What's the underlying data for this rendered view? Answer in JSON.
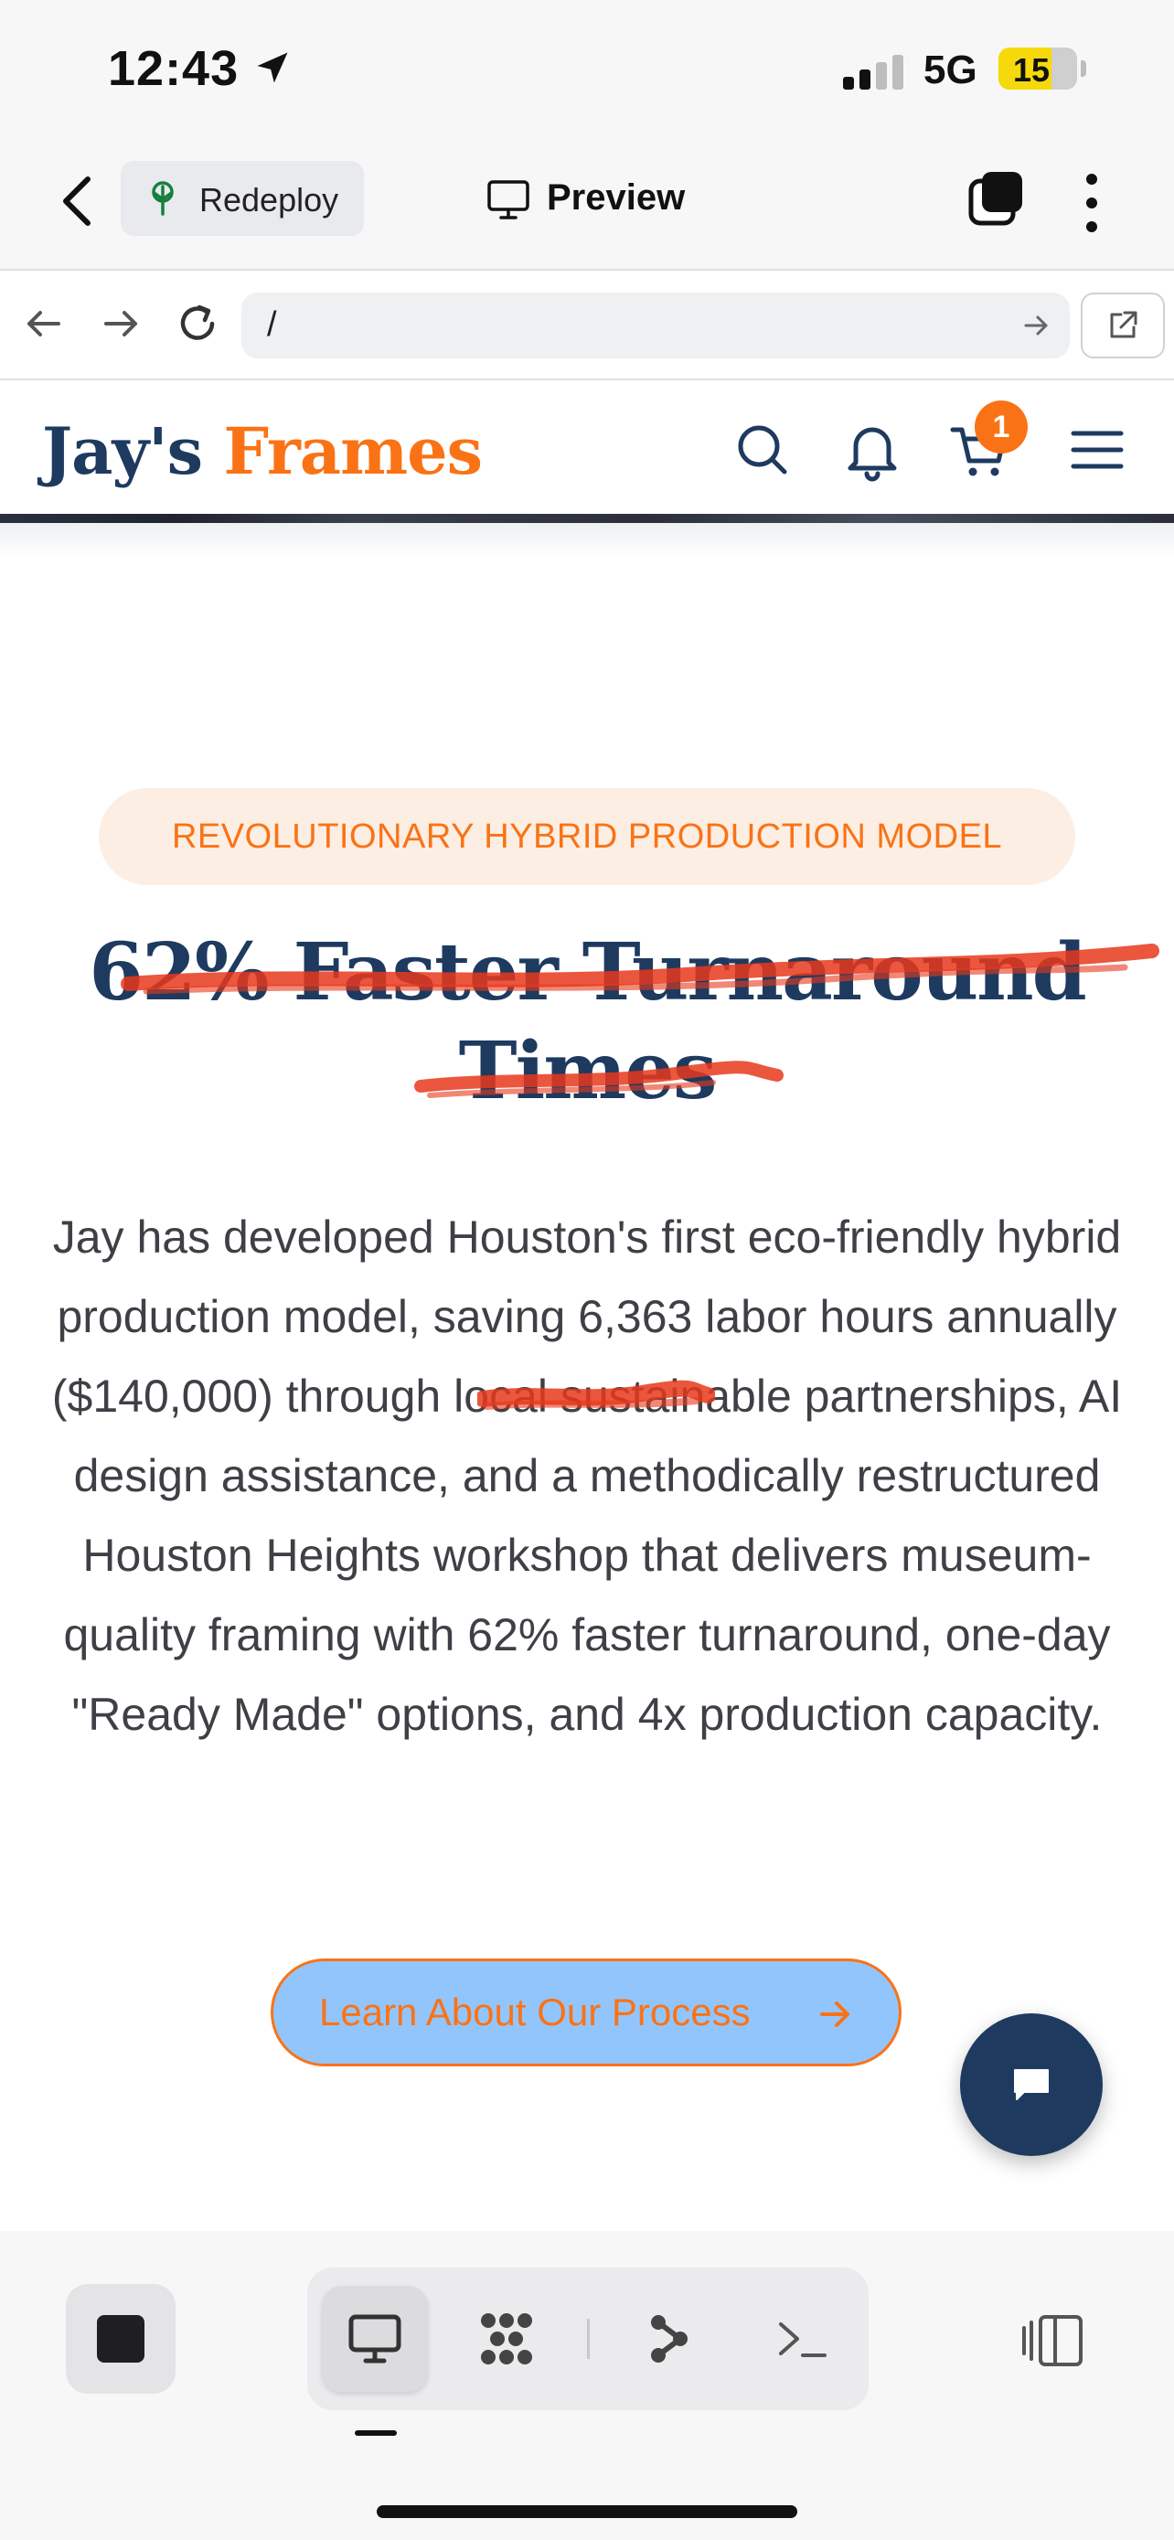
{
  "status_bar": {
    "time": "12:43",
    "network": "5G",
    "battery": "15",
    "location_icon": "location-arrow-icon",
    "signal_icon": "signal-icon"
  },
  "app_header": {
    "back_icon": "chevron-left-icon",
    "redeploy_label": "Redeploy",
    "redeploy_icon": "deploy-tree-icon",
    "preview_label": "Preview",
    "preview_icon": "monitor-icon",
    "tabs_icon": "tabs-icon",
    "more_icon": "more-vertical-icon"
  },
  "url_bar": {
    "url": "/",
    "back_icon": "arrow-left-icon",
    "forward_icon": "arrow-right-icon",
    "reload_icon": "reload-icon",
    "go_icon": "arrow-right-icon",
    "open_external_icon": "external-link-icon"
  },
  "site_nav": {
    "brand_primary": "Jay's",
    "brand_accent": "Frames",
    "cart_count": "1",
    "icons": [
      "search-icon",
      "bell-icon",
      "cart-icon",
      "menu-icon"
    ]
  },
  "hero": {
    "badge": "REVOLUTIONARY HYBRID PRODUCTION MODEL",
    "headline_line1": "62% Faster Turnaround",
    "headline_line2": "Times",
    "body_before": "Jay has developed Houston's first eco-friendly hybrid production model, saving 6,363 labor hours annually (",
    "body_struck": "$140,000",
    "body_after": ") through local sustainable partnerships, AI design assistance, and a methodically restructured Houston Heights workshop that delivers museum-quality framing with 62% faster turnaround, one-day \"Ready Made\" options, and 4x production capacity.",
    "cta_label": "Learn About Our Process",
    "cta_icon": "arrow-right-icon",
    "chat_icon": "chat-bubble-icon"
  },
  "bottom_toolbar": {
    "stop_icon": "stop-icon",
    "modes": [
      "monitor-icon",
      "grid-dots-icon",
      "branch-icon",
      "terminal-icon"
    ],
    "active_mode": "monitor-icon",
    "layout_icon": "panel-layout-icon"
  },
  "colors": {
    "brand_navy": "#1e3a5f",
    "brand_orange": "#f97316",
    "badge_bg": "#fdeee3",
    "cta_bg": "#93c5fd",
    "scribble_red": "#e8381c"
  }
}
